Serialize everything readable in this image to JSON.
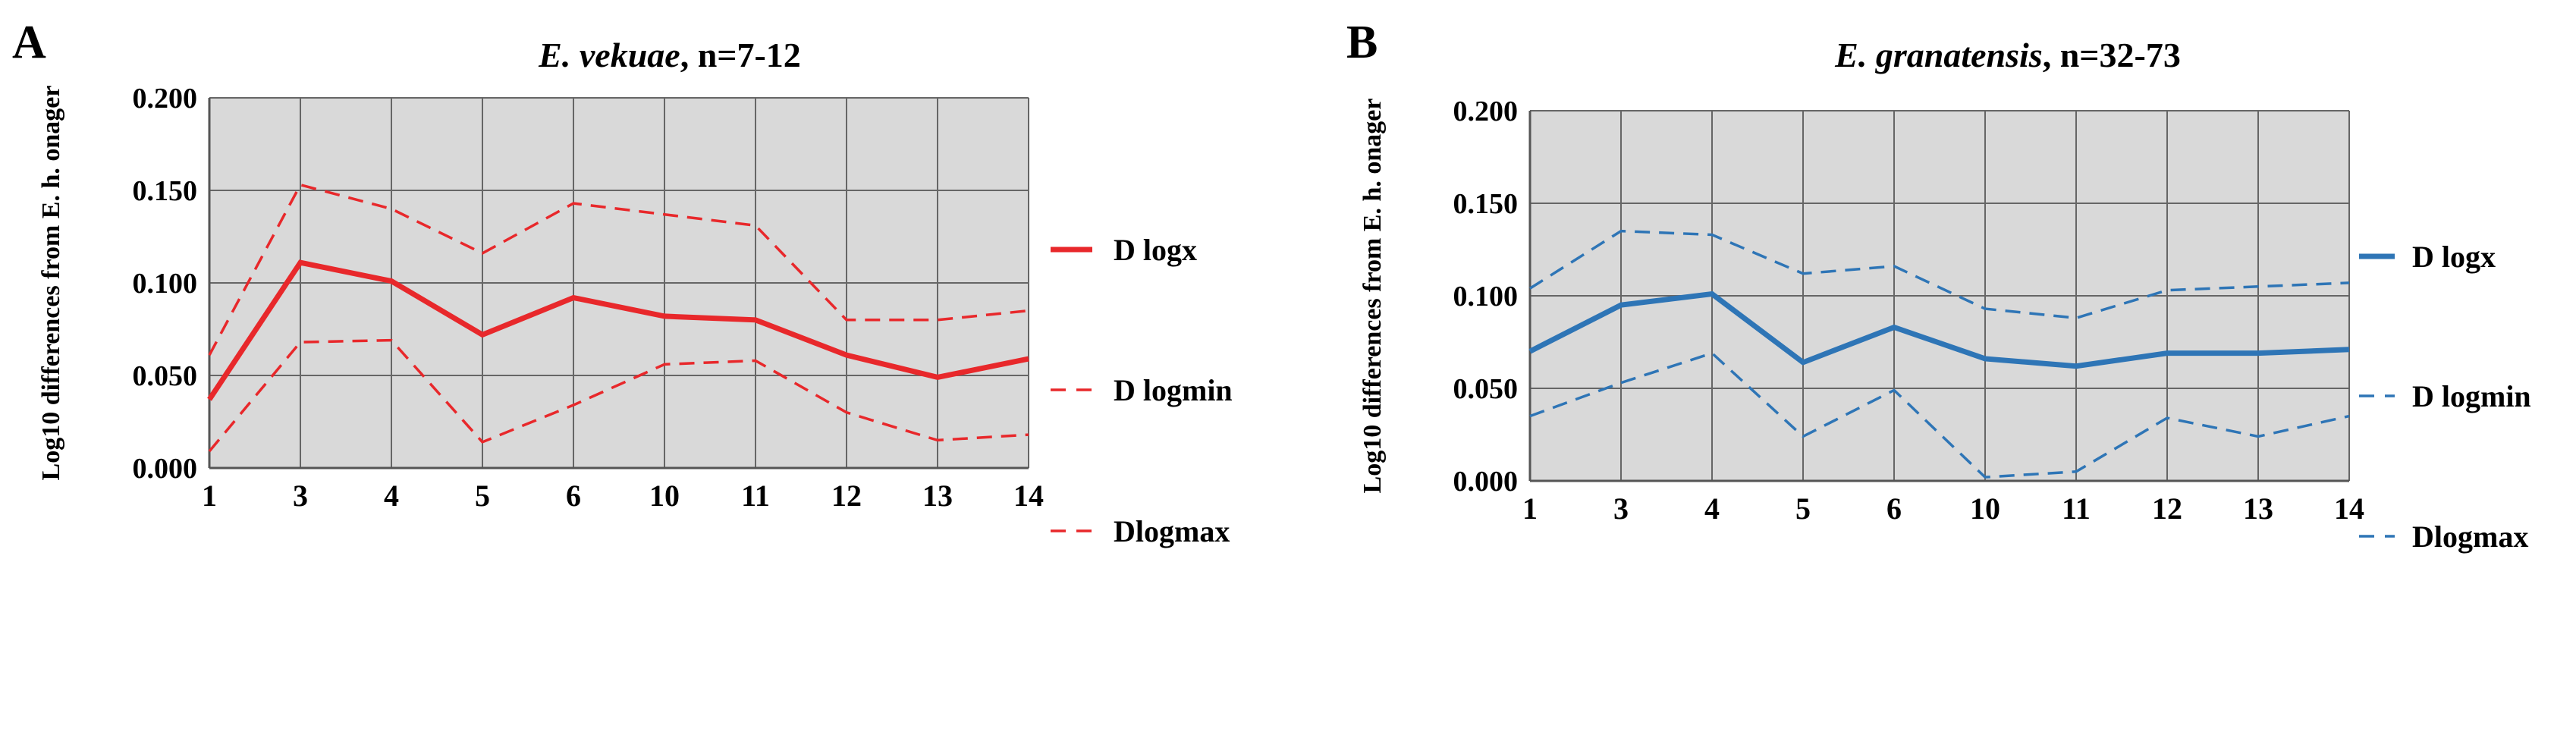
{
  "chart_data": [
    {
      "type": "line",
      "panel_label": "A",
      "title_species": "E. vekuae",
      "title_suffix": ", n=7-12",
      "ylabel": "Log10 differences from E. h. onager",
      "xlabel": "",
      "categories": [
        "1",
        "3",
        "4",
        "5",
        "6",
        "10",
        "11",
        "12",
        "13",
        "14"
      ],
      "ylim": [
        0,
        0.2
      ],
      "yticks": [
        "0.000",
        "0.050",
        "0.100",
        "0.150",
        "0.200"
      ],
      "ytick_values": [
        0,
        0.05,
        0.1,
        0.15,
        0.2
      ],
      "grid": true,
      "legend_position": "right",
      "color": "#e8282b",
      "series": [
        {
          "name": "D logx",
          "style": "solid",
          "values": [
            0.037,
            0.111,
            0.101,
            0.072,
            0.092,
            0.082,
            0.08,
            0.061,
            0.049,
            0.059
          ]
        },
        {
          "name": "D logmin",
          "style": "dashed",
          "values": [
            0.061,
            0.153,
            0.14,
            0.116,
            0.143,
            0.137,
            0.131,
            0.08,
            0.08,
            0.085
          ]
        },
        {
          "name": "Dlogmax",
          "style": "dashed",
          "values": [
            0.009,
            0.068,
            0.069,
            0.014,
            0.034,
            0.056,
            0.058,
            0.03,
            0.015,
            0.018
          ]
        }
      ]
    },
    {
      "type": "line",
      "panel_label": "B",
      "title_species": "E. granatensis",
      "title_suffix": ", n=32-73",
      "ylabel": "Log10 differences from E. h. onager",
      "xlabel": "",
      "categories": [
        "1",
        "3",
        "4",
        "5",
        "6",
        "10",
        "11",
        "12",
        "13",
        "14"
      ],
      "ylim": [
        0,
        0.2
      ],
      "yticks": [
        "0.000",
        "0.050",
        "0.100",
        "0.150",
        "0.200"
      ],
      "ytick_values": [
        0,
        0.05,
        0.1,
        0.15,
        0.2
      ],
      "grid": true,
      "legend_position": "right",
      "color": "#2e75b6",
      "series": [
        {
          "name": "D logx",
          "style": "solid",
          "values": [
            0.07,
            0.095,
            0.101,
            0.064,
            0.083,
            0.066,
            0.062,
            0.069,
            0.069,
            0.071
          ]
        },
        {
          "name": "D logmin",
          "style": "dashed",
          "values": [
            0.104,
            0.135,
            0.133,
            0.112,
            0.116,
            0.093,
            0.088,
            0.103,
            0.105,
            0.107
          ]
        },
        {
          "name": "Dlogmax",
          "style": "dashed",
          "values": [
            0.035,
            0.053,
            0.069,
            0.024,
            0.049,
            0.002,
            0.005,
            0.034,
            0.024,
            0.035
          ]
        }
      ]
    }
  ]
}
